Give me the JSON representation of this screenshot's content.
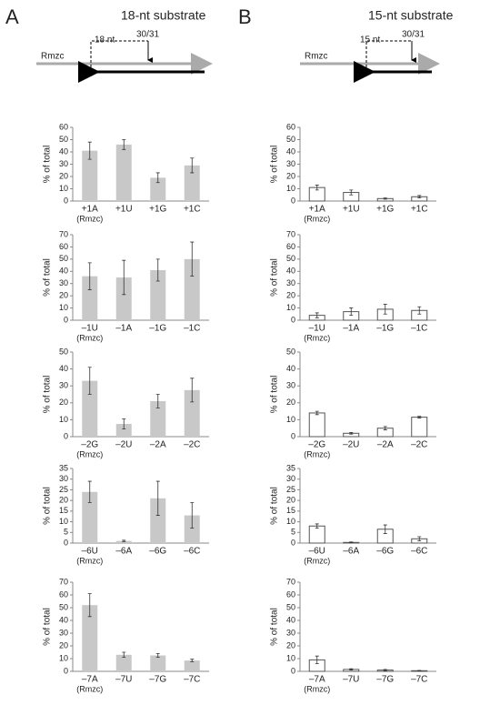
{
  "panels": [
    {
      "label": "A",
      "title": "18-nt substrate",
      "gene": "Rmzc",
      "length": "18 nt",
      "site": "30/31"
    },
    {
      "label": "B",
      "title": "15-nt substrate",
      "gene": "Rmzc",
      "length": "15 nt",
      "site": "30/31"
    }
  ],
  "chart_data": [
    {
      "type": "bar",
      "y_label": "% of total",
      "categories": [
        "+1A",
        "+1U",
        "+1G",
        "+1C"
      ],
      "category_note": "(Rmzc)",
      "values": [
        41,
        46,
        19,
        29
      ],
      "errors": [
        7,
        4,
        4,
        6
      ],
      "color": "#c8c8c8",
      "ylim": [
        0,
        60
      ],
      "yticks": [
        0,
        10,
        20,
        30,
        40,
        50,
        60
      ]
    },
    {
      "type": "bar",
      "y_label": "% of total",
      "categories": [
        "–1U",
        "–1A",
        "–1G",
        "–1C"
      ],
      "category_note": "(Rmzc)",
      "values": [
        36,
        35,
        41,
        50
      ],
      "errors": [
        11,
        14,
        9,
        14
      ],
      "color": "#c8c8c8",
      "ylim": [
        0,
        70
      ],
      "yticks": [
        0,
        10,
        20,
        30,
        40,
        50,
        60,
        70
      ]
    },
    {
      "type": "bar",
      "y_label": "% of total",
      "categories": [
        "–2G",
        "–2U",
        "–2A",
        "–2C"
      ],
      "category_note": "(Rmzc)",
      "values": [
        33,
        7.5,
        21,
        27.5
      ],
      "errors": [
        8,
        3,
        4,
        7
      ],
      "color": "#c8c8c8",
      "ylim": [
        0,
        50
      ],
      "yticks": [
        0,
        10,
        20,
        30,
        40,
        50
      ]
    },
    {
      "type": "bar",
      "y_label": "% of total",
      "categories": [
        "–6U",
        "–6A",
        "–6G",
        "–6C"
      ],
      "category_note": "(Rmzc)",
      "values": [
        24,
        1,
        21,
        13
      ],
      "errors": [
        5,
        0.3,
        8,
        6
      ],
      "color": "#c8c8c8",
      "ylim": [
        0,
        35
      ],
      "yticks": [
        0,
        5,
        10,
        15,
        20,
        25,
        30,
        35
      ]
    },
    {
      "type": "bar",
      "y_label": "% of total",
      "categories": [
        "–7A",
        "–7U",
        "–7G",
        "–7C"
      ],
      "category_note": "(Rmzc)",
      "values": [
        52,
        13,
        12.5,
        8.5
      ],
      "errors": [
        9,
        2,
        1.5,
        1
      ],
      "color": "#c8c8c8",
      "ylim": [
        0,
        70
      ],
      "yticks": [
        0,
        10,
        20,
        30,
        40,
        50,
        60,
        70
      ]
    },
    {
      "type": "bar",
      "y_label": "% of total",
      "categories": [
        "+1A",
        "+1U",
        "+1G",
        "+1C"
      ],
      "category_note": "(Rmzc)",
      "values": [
        11,
        7,
        2,
        3.5
      ],
      "errors": [
        2,
        2,
        0.5,
        1
      ],
      "color": "#ffffff",
      "ylim": [
        0,
        60
      ],
      "yticks": [
        0,
        10,
        20,
        30,
        40,
        50,
        60
      ]
    },
    {
      "type": "bar",
      "y_label": "% of total",
      "categories": [
        "–1U",
        "–1A",
        "–1G",
        "–1C"
      ],
      "category_note": "(Rmzc)",
      "values": [
        4,
        7,
        9,
        8
      ],
      "errors": [
        2,
        3,
        4,
        3
      ],
      "color": "#ffffff",
      "ylim": [
        0,
        70
      ],
      "yticks": [
        0,
        10,
        20,
        30,
        40,
        50,
        60,
        70
      ]
    },
    {
      "type": "bar",
      "y_label": "% of total",
      "categories": [
        "–2G",
        "–2U",
        "–2A",
        "–2C"
      ],
      "category_note": "(Rmzc)",
      "values": [
        14,
        2,
        5,
        11.5
      ],
      "errors": [
        1,
        0.5,
        1,
        0.5
      ],
      "color": "#ffffff",
      "ylim": [
        0,
        50
      ],
      "yticks": [
        0,
        10,
        20,
        30,
        40,
        50
      ]
    },
    {
      "type": "bar",
      "y_label": "% of total",
      "categories": [
        "–6U",
        "–6A",
        "–6G",
        "–6C"
      ],
      "category_note": "(Rmzc)",
      "values": [
        8,
        0.3,
        6.5,
        2
      ],
      "errors": [
        1,
        0.2,
        2,
        1
      ],
      "color": "#ffffff",
      "ylim": [
        0,
        35
      ],
      "yticks": [
        0,
        5,
        10,
        15,
        20,
        25,
        30,
        35
      ]
    },
    {
      "type": "bar",
      "y_label": "% of total",
      "categories": [
        "–7A",
        "–7U",
        "–7G",
        "–7C"
      ],
      "category_note": "(Rmzc)",
      "values": [
        9,
        1.5,
        1,
        0.5
      ],
      "errors": [
        3,
        0.5,
        0.5,
        0.2
      ],
      "color": "#ffffff",
      "ylim": [
        0,
        70
      ],
      "yticks": [
        0,
        10,
        20,
        30,
        40,
        50,
        60,
        70
      ]
    }
  ]
}
